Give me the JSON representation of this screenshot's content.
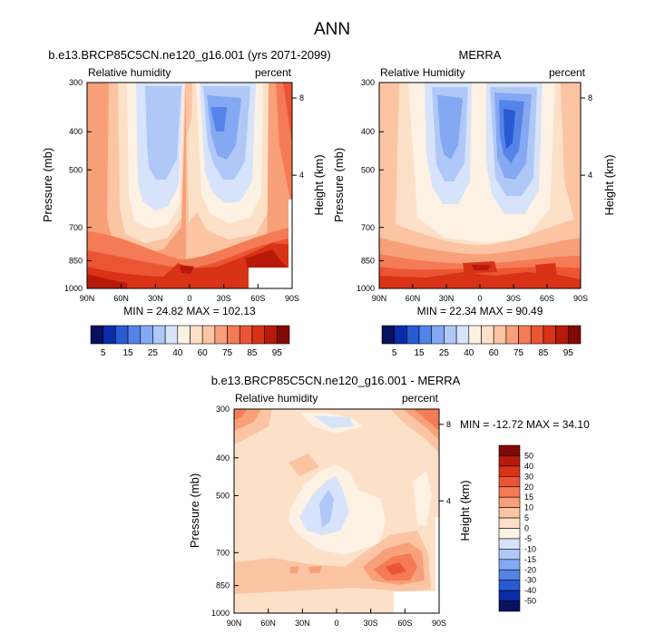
{
  "figure": {
    "title": "ANN"
  },
  "chart_data": [
    {
      "type": "heatmap",
      "title": "b.e13.BRCP85C5CN.ne120_g16.001 (yrs 2071-2099)",
      "left_label": "Relative humidity",
      "right_label": "percent",
      "xlabel": "",
      "ylabel": "Pressure (mb)",
      "y2label": "Height (km)",
      "x_ticks": [
        "90N",
        "60N",
        "30N",
        "0",
        "30S",
        "60S",
        "90S"
      ],
      "y_ticks": [
        "300",
        "400",
        "500",
        "700",
        "850",
        "1000"
      ],
      "y2_ticks": [
        "8",
        "4"
      ],
      "ylim": [
        1000,
        300
      ],
      "min_max_text": "MIN =  24.82  MAX = 102.13",
      "colorbar": {
        "labels": [
          "5",
          "15",
          "25",
          "40",
          "60",
          "75",
          "85",
          "95"
        ],
        "colors": [
          "#08115f",
          "#0a2ca8",
          "#2a5ad3",
          "#5484e8",
          "#84a8f2",
          "#b0c8f7",
          "#d6e3fa",
          "#fdf1e3",
          "#fde0c8",
          "#fbc4a2",
          "#f8a07a",
          "#f47b55",
          "#ec5534",
          "#d83317",
          "#b71a0a",
          "#820a06"
        ]
      }
    },
    {
      "type": "heatmap",
      "title": "MERRA",
      "left_label": "Relative Humidity",
      "right_label": "percent",
      "xlabel": "",
      "ylabel": "Pressure (mb)",
      "y2label": "Height (km)",
      "x_ticks": [
        "90N",
        "60N",
        "30N",
        "0",
        "30S",
        "60S",
        "90S"
      ],
      "y_ticks": [
        "300",
        "400",
        "500",
        "700",
        "850",
        "1000"
      ],
      "y2_ticks": [
        "8",
        "4"
      ],
      "ylim": [
        1000,
        300
      ],
      "min_max_text": "MIN =  22.34  MAX =  90.49",
      "colorbar": {
        "labels": [
          "5",
          "15",
          "25",
          "40",
          "60",
          "75",
          "85",
          "95"
        ],
        "colors": [
          "#08115f",
          "#0a2ca8",
          "#2a5ad3",
          "#5484e8",
          "#84a8f2",
          "#b0c8f7",
          "#d6e3fa",
          "#fdf1e3",
          "#fde0c8",
          "#fbc4a2",
          "#f8a07a",
          "#f47b55",
          "#ec5534",
          "#d83317",
          "#b71a0a",
          "#820a06"
        ]
      }
    },
    {
      "type": "heatmap",
      "title": "b.e13.BRCP85C5CN.ne120_g16.001 - MERRA",
      "left_label": "Relative humidity",
      "right_label": "percent",
      "xlabel": "",
      "ylabel": "Pressure (mb)",
      "y2label": "Height (km)",
      "x_ticks": [
        "90N",
        "60N",
        "30N",
        "0",
        "30S",
        "60S",
        "90S"
      ],
      "y_ticks": [
        "300",
        "400",
        "500",
        "700",
        "850",
        "1000"
      ],
      "y2_ticks": [
        "8",
        "4"
      ],
      "ylim": [
        1000,
        300
      ],
      "min_max_text": "MIN = -12.72  MAX = 34.10",
      "colorbar": {
        "labels": [
          "50",
          "40",
          "30",
          "20",
          "15",
          "10",
          "5",
          "0",
          "-5",
          "-10",
          "-15",
          "-20",
          "-30",
          "-40",
          "-50"
        ],
        "colors": [
          "#820a06",
          "#b71a0a",
          "#d83317",
          "#ec5534",
          "#f47b55",
          "#f8a07a",
          "#fbc4a2",
          "#fde0c8",
          "#fdf1e3",
          "#d6e3fa",
          "#b0c8f7",
          "#84a8f2",
          "#5484e8",
          "#2a5ad3",
          "#0a2ca8",
          "#08115f"
        ]
      }
    }
  ]
}
